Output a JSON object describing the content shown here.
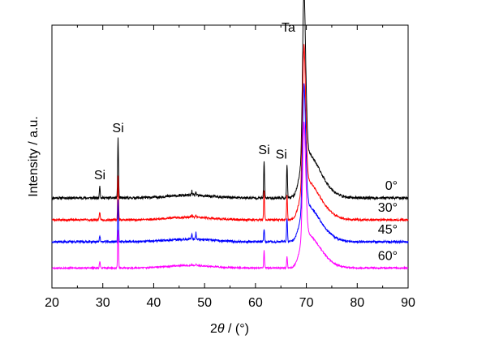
{
  "chart_data": {
    "type": "line",
    "xlabel": "2θ / (°)",
    "xlabel_parts": {
      "prefix": "2",
      "symbol": "θ",
      "suffix": " / (°)"
    },
    "ylabel": "Intensity / a.u.",
    "xlim": [
      20,
      90
    ],
    "x_ticks": [
      "20",
      "30",
      "40",
      "50",
      "60",
      "70",
      "80",
      "90"
    ],
    "y_ticks": [],
    "grid": false,
    "legend": "none",
    "series": [
      {
        "name": "0°",
        "color": "#000000",
        "baseline": 1.0,
        "noise": 0.06,
        "tail": 1.0,
        "seed": 11
      },
      {
        "name": "30°",
        "color": "#ff0000",
        "baseline": 0.0,
        "noise": 0.045,
        "tail": 0.85,
        "seed": 23
      },
      {
        "name": "45°",
        "color": "#0000ff",
        "baseline": -1.0,
        "noise": 0.05,
        "tail": 0.8,
        "seed": 37
      },
      {
        "name": "60°",
        "color": "#ff00ff",
        "baseline": -2.2,
        "noise": 0.035,
        "tail": 0.75,
        "seed": 53
      }
    ],
    "peaks": [
      {
        "label": "Si",
        "x": 29.4,
        "heights": [
          0.55,
          0.35,
          0.3,
          0.3
        ]
      },
      {
        "label": "Si",
        "x": 33.0,
        "heights": [
          2.7,
          2.0,
          1.9,
          1.7
        ]
      },
      {
        "label": "",
        "x": 47.5,
        "heights": [
          0.2,
          0.1,
          0.2,
          0.05
        ]
      },
      {
        "label": "",
        "x": 48.3,
        "heights": [
          0.15,
          0.1,
          0.3,
          0.05
        ]
      },
      {
        "label": "Si",
        "x": 61.7,
        "heights": [
          1.7,
          1.3,
          0.6,
          0.8
        ]
      },
      {
        "label": "Si",
        "x": 66.2,
        "heights": [
          1.5,
          1.1,
          1.1,
          0.5
        ]
      },
      {
        "label": "Ta",
        "x": 69.5,
        "heights": [
          7.4,
          6.2,
          5.5,
          5.1
        ]
      }
    ],
    "annotations": [
      "Si",
      "Si",
      "Si",
      "Si",
      "Ta"
    ]
  }
}
